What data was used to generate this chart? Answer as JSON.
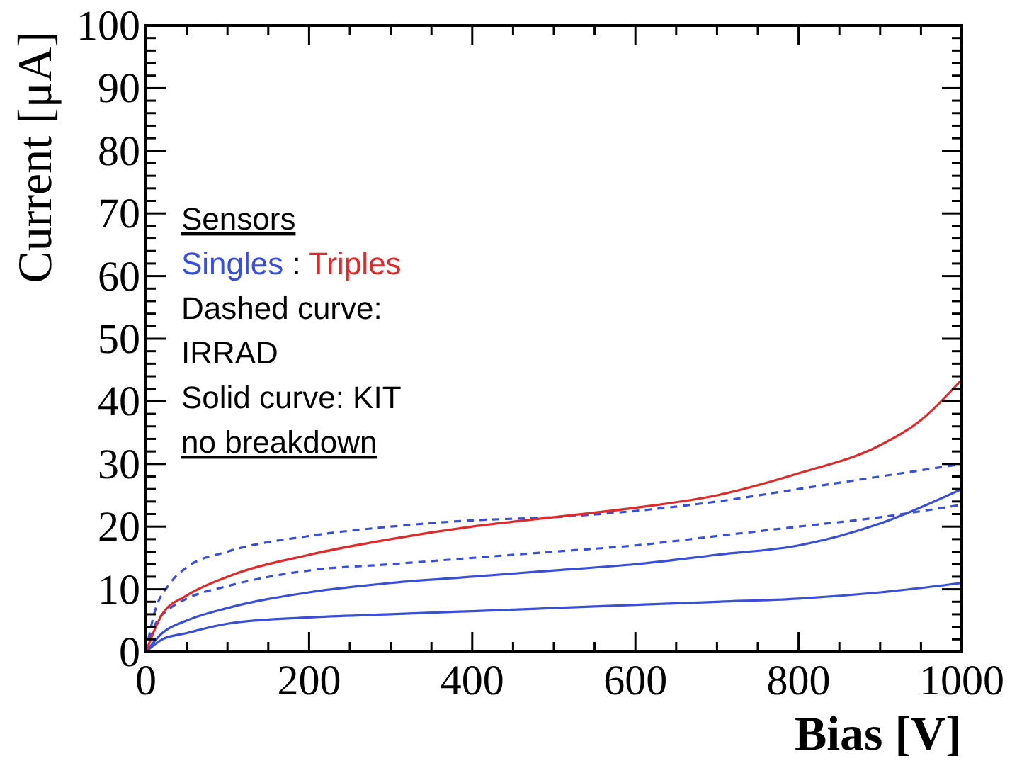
{
  "chart_data": {
    "type": "line",
    "xlabel": "Bias [V]",
    "ylabel": "Current [μA]",
    "xlim": [
      0,
      1000
    ],
    "ylim": [
      0,
      100
    ],
    "xticks": [
      0,
      {
        "value": 50,
        "label": null
      },
      {
        "value": 100,
        "label": null
      },
      {
        "value": 150,
        "label": null
      },
      200,
      {
        "value": 250,
        "label": null
      },
      {
        "value": 300,
        "label": null
      },
      {
        "value": 350,
        "label": null
      },
      400,
      {
        "value": 450,
        "label": null
      },
      {
        "value": 500,
        "label": null
      },
      {
        "value": 550,
        "label": null
      },
      600,
      {
        "value": 650,
        "label": null
      },
      {
        "value": 700,
        "label": null
      },
      {
        "value": 750,
        "label": null
      },
      800,
      {
        "value": 850,
        "label": null
      },
      {
        "value": 900,
        "label": null
      },
      {
        "value": 950,
        "label": null
      },
      1000
    ],
    "yticks": [
      0,
      {
        "value": 2,
        "label": null
      },
      {
        "value": 4,
        "label": null
      },
      {
        "value": 6,
        "label": null
      },
      {
        "value": 8,
        "label": null
      },
      10,
      {
        "value": 12,
        "label": null
      },
      {
        "value": 14,
        "label": null
      },
      {
        "value": 16,
        "label": null
      },
      {
        "value": 18,
        "label": null
      },
      20,
      {
        "value": 22,
        "label": null
      },
      {
        "value": 24,
        "label": null
      },
      {
        "value": 26,
        "label": null
      },
      {
        "value": 28,
        "label": null
      },
      30,
      {
        "value": 32,
        "label": null
      },
      {
        "value": 34,
        "label": null
      },
      {
        "value": 36,
        "label": null
      },
      {
        "value": 38,
        "label": null
      },
      40,
      {
        "value": 42,
        "label": null
      },
      {
        "value": 44,
        "label": null
      },
      {
        "value": 46,
        "label": null
      },
      {
        "value": 48,
        "label": null
      },
      50,
      {
        "value": 52,
        "label": null
      },
      {
        "value": 54,
        "label": null
      },
      {
        "value": 56,
        "label": null
      },
      {
        "value": 58,
        "label": null
      },
      60,
      {
        "value": 62,
        "label": null
      },
      {
        "value": 64,
        "label": null
      },
      {
        "value": 66,
        "label": null
      },
      {
        "value": 68,
        "label": null
      },
      70,
      {
        "value": 72,
        "label": null
      },
      {
        "value": 74,
        "label": null
      },
      {
        "value": 76,
        "label": null
      },
      {
        "value": 78,
        "label": null
      },
      80,
      {
        "value": 82,
        "label": null
      },
      {
        "value": 84,
        "label": null
      },
      {
        "value": 86,
        "label": null
      },
      {
        "value": 88,
        "label": null
      },
      90,
      {
        "value": 92,
        "label": null
      },
      {
        "value": 94,
        "label": null
      },
      {
        "value": 96,
        "label": null
      },
      {
        "value": 98,
        "label": null
      },
      100
    ],
    "grid": false,
    "annotations": [
      "Sensors",
      "Singles : Triples",
      "Dashed curve:",
      "IRRAD",
      "Solid curve: KIT",
      "no breakdown"
    ],
    "series": [
      {
        "color": "#3a4fd8",
        "line_style": "dashed",
        "x": [
          0,
          10,
          30,
          50,
          100,
          200,
          300,
          400,
          500,
          600,
          700,
          800,
          900,
          1000
        ],
        "values": [
          0,
          6,
          11,
          13.5,
          16,
          18.5,
          20,
          21,
          21.5,
          22.5,
          24,
          26,
          28,
          30
        ]
      },
      {
        "color": "#3a4fd8",
        "line_style": "dashed",
        "x": [
          0,
          10,
          30,
          50,
          100,
          200,
          300,
          400,
          500,
          600,
          700,
          800,
          900,
          1000
        ],
        "values": [
          0,
          4,
          7,
          8.5,
          10.5,
          13,
          14,
          15,
          16,
          17,
          18.5,
          20,
          21.5,
          23.5
        ]
      },
      {
        "color": "#3a4fd8",
        "line_style": "solid",
        "x": [
          0,
          20,
          50,
          100,
          200,
          300,
          400,
          500,
          600,
          700,
          800,
          850,
          900,
          1000
        ],
        "values": [
          0,
          3,
          5,
          7,
          9.5,
          11,
          12,
          13,
          14,
          15.5,
          17,
          18.5,
          20.5,
          26
        ]
      },
      {
        "color": "#3a4fd8",
        "line_style": "solid",
        "x": [
          0,
          20,
          50,
          100,
          200,
          300,
          400,
          500,
          600,
          700,
          800,
          900,
          1000
        ],
        "values": [
          0,
          2,
          3,
          4.5,
          5.5,
          6,
          6.5,
          7,
          7.5,
          8,
          8.5,
          9.5,
          11
        ]
      },
      {
        "color": "#dd2a2a",
        "line_style": "solid",
        "x": [
          0,
          20,
          50,
          100,
          200,
          300,
          400,
          500,
          600,
          700,
          800,
          900,
          950,
          1000
        ],
        "values": [
          0,
          6,
          9,
          12,
          15.5,
          18,
          20,
          21.5,
          23,
          25,
          28.5,
          33,
          37,
          43.5
        ]
      }
    ]
  }
}
